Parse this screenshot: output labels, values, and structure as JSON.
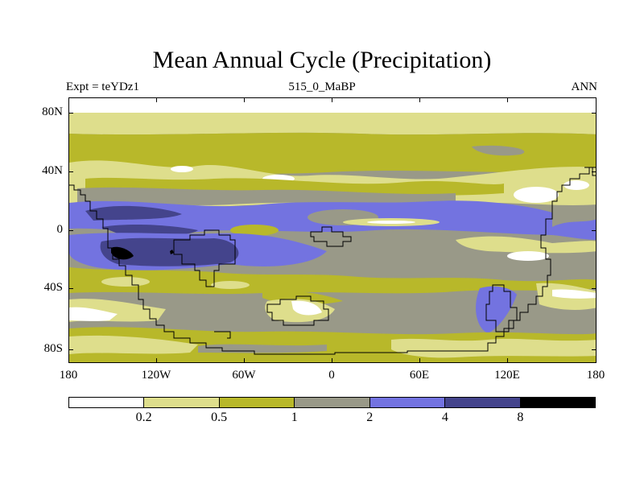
{
  "title": "Mean Annual Cycle (Precipitation)",
  "subtitle_left": "Expt = teYDz1",
  "subtitle_center": "515_0_MaBP",
  "subtitle_right": "ANN",
  "lat_labels": [
    "80N",
    "40N",
    "0",
    "40S",
    "80S"
  ],
  "lon_labels": [
    "180",
    "120W",
    "60W",
    "0",
    "60E",
    "120E",
    "180"
  ],
  "colorbar": {
    "colors": [
      "#ffffff",
      "#dede8c",
      "#b8b82a",
      "#999988",
      "#7373e0",
      "#44448c",
      "#000000"
    ],
    "levels": [
      "0.2",
      "0.5",
      "1",
      "2",
      "4",
      "8"
    ]
  }
}
